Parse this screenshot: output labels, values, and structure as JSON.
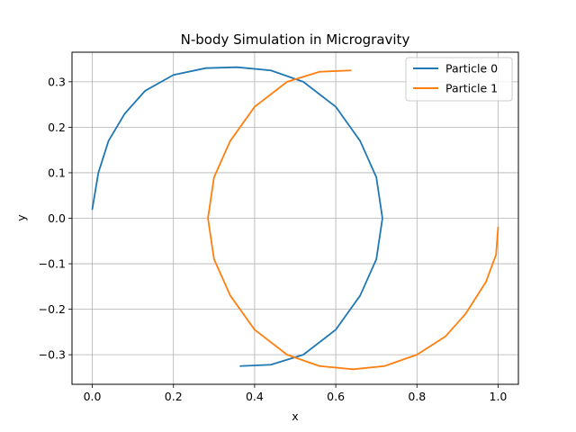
{
  "chart_data": {
    "type": "line",
    "title": "N-body Simulation in Microgravity",
    "xlabel": "x",
    "ylabel": "y",
    "xlim": [
      -0.05,
      1.05
    ],
    "ylim": [
      -0.365,
      0.365
    ],
    "xticks": [
      0.0,
      0.2,
      0.4,
      0.6,
      0.8,
      1.0
    ],
    "xtick_labels": [
      "0.0",
      "0.2",
      "0.4",
      "0.6",
      "0.8",
      "1.0"
    ],
    "yticks": [
      -0.3,
      -0.2,
      -0.1,
      0.0,
      0.1,
      0.2,
      0.3
    ],
    "ytick_labels": [
      "−0.3",
      "−0.2",
      "−0.1",
      "0.0",
      "0.1",
      "0.2",
      "0.3"
    ],
    "grid": true,
    "legend_position": "top-right",
    "series": [
      {
        "name": "Particle 0",
        "color": "#1f77b4",
        "x": [
          0.0,
          0.015,
          0.04,
          0.08,
          0.13,
          0.2,
          0.28,
          0.357,
          0.44,
          0.52,
          0.6,
          0.66,
          0.7,
          0.715,
          0.7,
          0.66,
          0.6,
          0.52,
          0.44,
          0.365
        ],
        "y": [
          0.02,
          0.1,
          0.17,
          0.23,
          0.28,
          0.315,
          0.33,
          0.332,
          0.325,
          0.3,
          0.245,
          0.17,
          0.09,
          0.0,
          -0.09,
          -0.17,
          -0.245,
          -0.3,
          -0.322,
          -0.325
        ]
      },
      {
        "name": "Particle 1",
        "color": "#ff7f0e",
        "x": [
          0.637,
          0.56,
          0.48,
          0.4,
          0.34,
          0.3,
          0.285,
          0.3,
          0.34,
          0.4,
          0.48,
          0.56,
          0.643,
          0.72,
          0.8,
          0.87,
          0.92,
          0.97,
          0.995,
          1.0
        ],
        "y": [
          0.325,
          0.322,
          0.3,
          0.245,
          0.17,
          0.09,
          0.0,
          -0.09,
          -0.17,
          -0.245,
          -0.3,
          -0.325,
          -0.332,
          -0.325,
          -0.3,
          -0.26,
          -0.21,
          -0.14,
          -0.08,
          -0.02
        ]
      }
    ]
  }
}
